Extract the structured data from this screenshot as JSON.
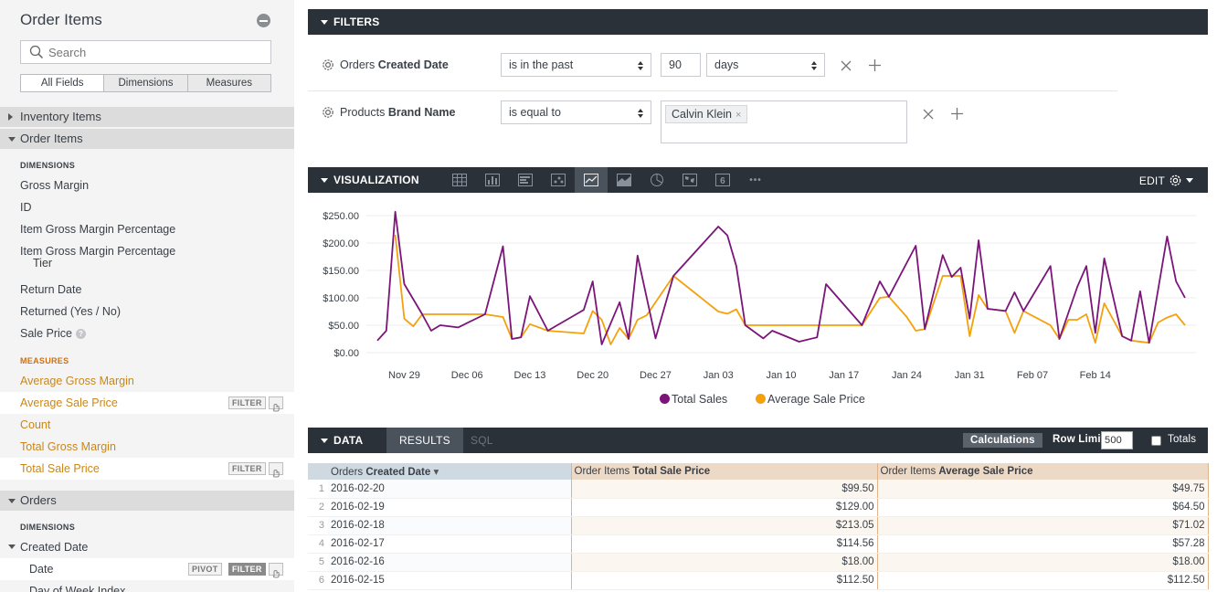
{
  "sidebar": {
    "title": "Order Items",
    "search_placeholder": "Search",
    "tabs": [
      "All Fields",
      "Dimensions",
      "Measures"
    ],
    "groups": {
      "inventory": "Inventory Items",
      "order_items": "Order Items",
      "orders": "Orders"
    },
    "order_items_dimensions_head": "DIMENSIONS",
    "order_items_dimensions": [
      "Gross Margin",
      "ID",
      "Item Gross Margin Percentage",
      "Item Gross Margin Percentage",
      "Return Date",
      "Returned (Yes / No)",
      "Sale Price"
    ],
    "tier_line": "Tier",
    "help_glyph": "?",
    "measures_head": "MEASURES",
    "measures": [
      "Average Gross Margin",
      "Average Sale Price",
      "Count",
      "Total Gross Margin",
      "Total Sale Price"
    ],
    "orders_dimensions_head": "DIMENSIONS",
    "created_date": "Created Date",
    "date": "Date",
    "day_of_week": "Day of Week Index",
    "pill_filter": "FILTER",
    "pill_pivot": "PIVOT"
  },
  "filters": {
    "title": "FILTERS",
    "row1": {
      "label_prefix": "Orders ",
      "label_bold": "Created Date",
      "operator": "is in the past",
      "value": "90",
      "unit": "days"
    },
    "row2": {
      "label_prefix": "Products ",
      "label_bold": "Brand Name",
      "operator": "is equal to",
      "chip": "Calvin Klein",
      "chip_x": "×"
    }
  },
  "visualization": {
    "title": "VISUALIZATION",
    "icons": [
      "table-icon",
      "column-icon",
      "bar-icon",
      "scatter-icon",
      "line-icon",
      "area-icon",
      "pie-icon",
      "map-icon",
      "single-value-icon",
      "more-icon"
    ],
    "active_icon": "line-icon",
    "single_value_glyph": "6",
    "more_glyph": "•••",
    "edit_label": "EDIT"
  },
  "chart_data": {
    "type": "line",
    "title": "",
    "xlabel": "",
    "ylabel": "",
    "ylim": [
      0,
      250
    ],
    "yticks": [
      "$0.00",
      "$50.00",
      "$100.00",
      "$150.00",
      "$200.00",
      "$250.00"
    ],
    "xticks": [
      {
        "label": "Nov 29",
        "index": 3
      },
      {
        "label": "Dec 06",
        "index": 10
      },
      {
        "label": "Dec 13",
        "index": 17
      },
      {
        "label": "Dec 20",
        "index": 24
      },
      {
        "label": "Dec 27",
        "index": 31
      },
      {
        "label": "Jan 03",
        "index": 38
      },
      {
        "label": "Jan 10",
        "index": 45
      },
      {
        "label": "Jan 17",
        "index": 52
      },
      {
        "label": "Jan 24",
        "index": 59
      },
      {
        "label": "Jan 31",
        "index": 66
      },
      {
        "label": "Feb 07",
        "index": 73
      },
      {
        "label": "Feb 14",
        "index": 80
      }
    ],
    "series": [
      {
        "name": "Total Sales",
        "color": "#7b1579",
        "points": [
          [
            0,
            22
          ],
          [
            1,
            40
          ],
          [
            2,
            257
          ],
          [
            3,
            125
          ],
          [
            5,
            70
          ],
          [
            6,
            40
          ],
          [
            7,
            50
          ],
          [
            9,
            46
          ],
          [
            12,
            70
          ],
          [
            14,
            194
          ],
          [
            15,
            25
          ],
          [
            16,
            28
          ],
          [
            17,
            103
          ],
          [
            19,
            40
          ],
          [
            23,
            78
          ],
          [
            24,
            130
          ],
          [
            25,
            15
          ],
          [
            27,
            92
          ],
          [
            28,
            25
          ],
          [
            29,
            177
          ],
          [
            31,
            26
          ],
          [
            33,
            140
          ],
          [
            38,
            230
          ],
          [
            39,
            214
          ],
          [
            40,
            158
          ],
          [
            41,
            50
          ],
          [
            43,
            26
          ],
          [
            44,
            40
          ],
          [
            47,
            20
          ],
          [
            49,
            28
          ],
          [
            50,
            125
          ],
          [
            54,
            50
          ],
          [
            56,
            130
          ],
          [
            57,
            102
          ],
          [
            60,
            195
          ],
          [
            61,
            43
          ],
          [
            63,
            178
          ],
          [
            64,
            138
          ],
          [
            65,
            155
          ],
          [
            66,
            62
          ],
          [
            67,
            205
          ],
          [
            68,
            80
          ],
          [
            70,
            76
          ],
          [
            71,
            110
          ],
          [
            72,
            76
          ],
          [
            75,
            158
          ],
          [
            76,
            25
          ],
          [
            78,
            120
          ],
          [
            79,
            158
          ],
          [
            80,
            36
          ],
          [
            81,
            172
          ],
          [
            83,
            30
          ],
          [
            84,
            22
          ],
          [
            85,
            112
          ],
          [
            86,
            18
          ],
          [
            88,
            212
          ],
          [
            89,
            130
          ],
          [
            90,
            100
          ]
        ]
      },
      {
        "name": "Average Sale Price",
        "color": "#f4a10c",
        "points": [
          [
            2,
            215
          ],
          [
            3,
            62
          ],
          [
            4,
            48
          ],
          [
            5,
            70
          ],
          [
            12,
            70
          ],
          [
            14,
            65
          ],
          [
            15,
            25
          ],
          [
            16,
            28
          ],
          [
            17,
            52
          ],
          [
            19,
            40
          ],
          [
            23,
            35
          ],
          [
            24,
            76
          ],
          [
            25,
            60
          ],
          [
            26,
            15
          ],
          [
            27,
            45
          ],
          [
            28,
            25
          ],
          [
            29,
            60
          ],
          [
            30,
            68
          ],
          [
            33,
            140
          ],
          [
            38,
            75
          ],
          [
            39,
            71
          ],
          [
            40,
            79
          ],
          [
            41,
            50
          ],
          [
            54,
            50
          ],
          [
            56,
            100
          ],
          [
            57,
            102
          ],
          [
            59,
            65
          ],
          [
            60,
            40
          ],
          [
            61,
            43
          ],
          [
            63,
            140
          ],
          [
            65,
            140
          ],
          [
            66,
            30
          ],
          [
            67,
            105
          ],
          [
            68,
            80
          ],
          [
            70,
            76
          ],
          [
            71,
            36
          ],
          [
            72,
            76
          ],
          [
            75,
            50
          ],
          [
            76,
            25
          ],
          [
            77,
            60
          ],
          [
            78,
            60
          ],
          [
            79,
            70
          ],
          [
            80,
            18
          ],
          [
            81,
            90
          ],
          [
            83,
            30
          ],
          [
            84,
            22
          ],
          [
            86,
            18
          ],
          [
            87,
            55
          ],
          [
            88,
            64
          ],
          [
            89,
            70
          ],
          [
            90,
            50
          ]
        ]
      }
    ]
  },
  "data": {
    "title": "DATA",
    "tabs": [
      "RESULTS",
      "SQL"
    ],
    "calculations_label": "Calculations",
    "row_limit_label": "Row Limit",
    "row_limit_value": "500",
    "totals_label": "Totals",
    "columns": [
      {
        "prefix": "Orders ",
        "bold": "Created Date",
        "sort": "▾"
      },
      {
        "prefix": "Order Items ",
        "bold": "Total Sale Price"
      },
      {
        "prefix": "Order Items ",
        "bold": "Average Sale Price"
      }
    ],
    "rows": [
      [
        "1",
        "2016-02-20",
        "$99.50",
        "$49.75"
      ],
      [
        "2",
        "2016-02-19",
        "$129.00",
        "$64.50"
      ],
      [
        "3",
        "2016-02-18",
        "$213.05",
        "$71.02"
      ],
      [
        "4",
        "2016-02-17",
        "$114.56",
        "$57.28"
      ],
      [
        "5",
        "2016-02-16",
        "$18.00",
        "$18.00"
      ],
      [
        "6",
        "2016-02-15",
        "$112.50",
        "$112.50"
      ]
    ]
  }
}
